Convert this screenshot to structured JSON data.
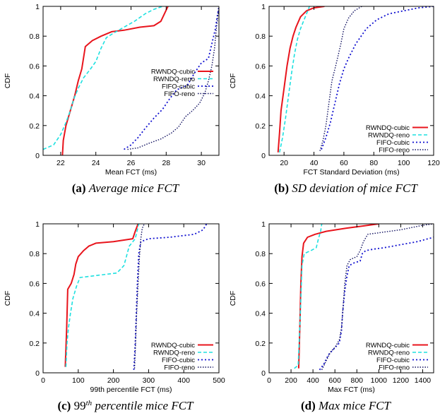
{
  "chart_data": [
    {
      "id": "a",
      "type": "line",
      "caption": {
        "tag": "(a)",
        "text": "Average mice FCT"
      },
      "xlabel": "Mean FCT (ms)",
      "ylabel": "CDF",
      "xlim": [
        21,
        31
      ],
      "ylim": [
        0,
        1
      ],
      "xticks": [
        22,
        24,
        26,
        28,
        30
      ],
      "yticks": [
        0,
        0.2,
        0.4,
        0.6,
        0.8,
        1
      ],
      "legend_position": "top-right",
      "series": [
        {
          "name": "RWNDQ-cubic",
          "color": "#e8141c",
          "dash": "",
          "width": 2,
          "points": [
            [
              22.1,
              0
            ],
            [
              22.15,
              0.1
            ],
            [
              22.3,
              0.2
            ],
            [
              22.55,
              0.3
            ],
            [
              22.8,
              0.4
            ],
            [
              23.0,
              0.5
            ],
            [
              23.2,
              0.58
            ],
            [
              23.4,
              0.73
            ],
            [
              23.8,
              0.77
            ],
            [
              24.3,
              0.8
            ],
            [
              24.9,
              0.83
            ],
            [
              25.6,
              0.84
            ],
            [
              26.5,
              0.86
            ],
            [
              27.3,
              0.87
            ],
            [
              27.7,
              0.9
            ],
            [
              27.9,
              0.95
            ],
            [
              28.1,
              1
            ]
          ]
        },
        {
          "name": "RWNDQ-reno",
          "color": "#1ee0e0",
          "dash": "5,3",
          "width": 1.6,
          "points": [
            [
              21,
              0.04
            ],
            [
              21.6,
              0.07
            ],
            [
              22.0,
              0.14
            ],
            [
              22.3,
              0.22
            ],
            [
              22.55,
              0.3
            ],
            [
              22.75,
              0.38
            ],
            [
              23.0,
              0.45
            ],
            [
              23.3,
              0.52
            ],
            [
              23.7,
              0.58
            ],
            [
              24.0,
              0.63
            ],
            [
              24.3,
              0.72
            ],
            [
              24.6,
              0.79
            ],
            [
              25.0,
              0.82
            ],
            [
              25.6,
              0.86
            ],
            [
              26.2,
              0.9
            ],
            [
              26.8,
              0.95
            ],
            [
              27.3,
              0.98
            ],
            [
              27.8,
              1
            ]
          ]
        },
        {
          "name": "FIFO-cubic",
          "color": "#1010d0",
          "dash": "2,3",
          "width": 1.8,
          "points": [
            [
              25.6,
              0.04
            ],
            [
              26.0,
              0.07
            ],
            [
              26.4,
              0.12
            ],
            [
              26.8,
              0.18
            ],
            [
              27.3,
              0.25
            ],
            [
              27.8,
              0.31
            ],
            [
              28.2,
              0.38
            ],
            [
              28.6,
              0.44
            ],
            [
              29.2,
              0.47
            ],
            [
              29.6,
              0.55
            ],
            [
              30.0,
              0.62
            ],
            [
              30.4,
              0.65
            ],
            [
              30.6,
              0.75
            ],
            [
              30.8,
              0.85
            ],
            [
              30.9,
              0.93
            ],
            [
              31.0,
              1
            ]
          ]
        },
        {
          "name": "FIFO-reno",
          "color": "#101060",
          "dash": "1.5,2",
          "width": 1.4,
          "points": [
            [
              25.8,
              0.04
            ],
            [
              26.4,
              0.05
            ],
            [
              27.0,
              0.08
            ],
            [
              27.7,
              0.11
            ],
            [
              28.3,
              0.15
            ],
            [
              28.7,
              0.19
            ],
            [
              29.1,
              0.26
            ],
            [
              29.5,
              0.3
            ],
            [
              29.9,
              0.35
            ],
            [
              30.2,
              0.42
            ],
            [
              30.4,
              0.5
            ],
            [
              30.6,
              0.6
            ],
            [
              30.75,
              0.72
            ],
            [
              30.85,
              0.85
            ],
            [
              30.95,
              0.95
            ],
            [
              31.0,
              1
            ]
          ]
        }
      ]
    },
    {
      "id": "b",
      "type": "line",
      "caption": {
        "tag": "(b)",
        "text": "SD deviation of mice FCT"
      },
      "xlabel": "FCT Standard Deviation (ms)",
      "ylabel": "CDF",
      "xlim": [
        10,
        120
      ],
      "ylim": [
        0,
        1
      ],
      "xticks": [
        20,
        40,
        60,
        80,
        100,
        120
      ],
      "yticks": [
        0,
        0.2,
        0.4,
        0.6,
        0.8,
        1
      ],
      "legend_position": "bottom-right",
      "series": [
        {
          "name": "RWNDQ-cubic",
          "color": "#e8141c",
          "dash": "",
          "width": 2,
          "points": [
            [
              16,
              0.02
            ],
            [
              17,
              0.15
            ],
            [
              18,
              0.3
            ],
            [
              20,
              0.45
            ],
            [
              22,
              0.6
            ],
            [
              24,
              0.72
            ],
            [
              26,
              0.8
            ],
            [
              28,
              0.86
            ],
            [
              31,
              0.93
            ],
            [
              35,
              0.97
            ],
            [
              40,
              0.99
            ],
            [
              47,
              1
            ]
          ]
        },
        {
          "name": "RWNDQ-reno",
          "color": "#1ee0e0",
          "dash": "5,3",
          "width": 1.6,
          "points": [
            [
              17,
              0.02
            ],
            [
              19,
              0.12
            ],
            [
              21,
              0.25
            ],
            [
              23,
              0.4
            ],
            [
              25,
              0.55
            ],
            [
              27,
              0.68
            ],
            [
              29,
              0.78
            ],
            [
              31,
              0.85
            ],
            [
              33,
              0.9
            ],
            [
              35,
              0.95
            ],
            [
              37,
              1
            ]
          ]
        },
        {
          "name": "FIFO-cubic",
          "color": "#1010d0",
          "dash": "2,3",
          "width": 1.8,
          "points": [
            [
              45,
              0.04
            ],
            [
              48,
              0.12
            ],
            [
              51,
              0.22
            ],
            [
              54,
              0.35
            ],
            [
              57,
              0.48
            ],
            [
              60,
              0.58
            ],
            [
              63,
              0.65
            ],
            [
              68,
              0.75
            ],
            [
              75,
              0.85
            ],
            [
              82,
              0.91
            ],
            [
              90,
              0.95
            ],
            [
              100,
              0.97
            ],
            [
              110,
              0.99
            ],
            [
              120,
              1
            ]
          ]
        },
        {
          "name": "FIFO-reno",
          "color": "#101060",
          "dash": "1.5,2",
          "width": 1.4,
          "points": [
            [
              44,
              0.03
            ],
            [
              46,
              0.1
            ],
            [
              48,
              0.2
            ],
            [
              50,
              0.35
            ],
            [
              52,
              0.5
            ],
            [
              55,
              0.62
            ],
            [
              58,
              0.75
            ],
            [
              60,
              0.85
            ],
            [
              63,
              0.92
            ],
            [
              67,
              0.97
            ],
            [
              72,
              1
            ]
          ]
        }
      ]
    },
    {
      "id": "c",
      "type": "line",
      "caption": {
        "tag": "(c)",
        "pre": "99",
        "sup": "th",
        "text": "percentile mice FCT"
      },
      "xlabel": "99th percentile FCT (ms)",
      "ylabel": "CDF",
      "xlim": [
        0,
        500
      ],
      "ylim": [
        0,
        1
      ],
      "xticks": [
        0,
        100,
        200,
        300,
        400,
        500
      ],
      "yticks": [
        0,
        0.2,
        0.4,
        0.6,
        0.8,
        1
      ],
      "legend_position": "bottom-right",
      "series": [
        {
          "name": "RWNDQ-cubic",
          "color": "#e8141c",
          "dash": "",
          "width": 2,
          "points": [
            [
              63,
              0.04
            ],
            [
              67,
              0.3
            ],
            [
              70,
              0.56
            ],
            [
              80,
              0.6
            ],
            [
              88,
              0.66
            ],
            [
              93,
              0.73
            ],
            [
              100,
              0.78
            ],
            [
              115,
              0.82
            ],
            [
              130,
              0.85
            ],
            [
              150,
              0.87
            ],
            [
              200,
              0.88
            ],
            [
              255,
              0.9
            ],
            [
              262,
              0.95
            ],
            [
              270,
              1
            ]
          ]
        },
        {
          "name": "RWNDQ-reno",
          "color": "#1ee0e0",
          "dash": "5,3",
          "width": 1.6,
          "points": [
            [
              65,
              0.04
            ],
            [
              68,
              0.2
            ],
            [
              72,
              0.3
            ],
            [
              78,
              0.4
            ],
            [
              85,
              0.5
            ],
            [
              95,
              0.58
            ],
            [
              105,
              0.64
            ],
            [
              140,
              0.65
            ],
            [
              210,
              0.67
            ],
            [
              230,
              0.72
            ],
            [
              245,
              0.85
            ],
            [
              262,
              0.9
            ],
            [
              272,
              1
            ]
          ]
        },
        {
          "name": "FIFO-cubic",
          "color": "#1010d0",
          "dash": "2,3",
          "width": 1.8,
          "points": [
            [
              258,
              0.02
            ],
            [
              262,
              0.2
            ],
            [
              265,
              0.4
            ],
            [
              268,
              0.6
            ],
            [
              272,
              0.8
            ],
            [
              278,
              0.88
            ],
            [
              300,
              0.9
            ],
            [
              360,
              0.91
            ],
            [
              430,
              0.93
            ],
            [
              455,
              0.96
            ],
            [
              465,
              1
            ]
          ]
        },
        {
          "name": "FIFO-reno",
          "color": "#101060",
          "dash": "1.5,2",
          "width": 1.4,
          "points": [
            [
              260,
              0.03
            ],
            [
              263,
              0.2
            ],
            [
              266,
              0.4
            ],
            [
              270,
              0.6
            ],
            [
              274,
              0.78
            ],
            [
              278,
              0.9
            ],
            [
              282,
              0.97
            ],
            [
              288,
              1
            ]
          ]
        }
      ]
    },
    {
      "id": "d",
      "type": "line",
      "caption": {
        "tag": "(d)",
        "text": "Max mice FCT"
      },
      "xlabel": "Max FCT (ms)",
      "ylabel": "CDF",
      "xlim": [
        0,
        1500
      ],
      "ylim": [
        0,
        1
      ],
      "xticks": [
        0,
        200,
        400,
        600,
        800,
        1000,
        1200,
        1400
      ],
      "yticks": [
        0,
        0.2,
        0.4,
        0.6,
        0.8,
        1
      ],
      "legend_position": "bottom-right",
      "series": [
        {
          "name": "RWNDQ-cubic",
          "color": "#e8141c",
          "dash": "",
          "width": 2,
          "points": [
            [
              270,
              0.03
            ],
            [
              280,
              0.3
            ],
            [
              290,
              0.6
            ],
            [
              300,
              0.78
            ],
            [
              315,
              0.87
            ],
            [
              350,
              0.91
            ],
            [
              420,
              0.93
            ],
            [
              520,
              0.95
            ],
            [
              700,
              0.97
            ],
            [
              1000,
              1
            ]
          ]
        },
        {
          "name": "RWNDQ-reno",
          "color": "#1ee0e0",
          "dash": "5,3",
          "width": 1.6,
          "points": [
            [
              230,
              0.03
            ],
            [
              265,
              0.05
            ],
            [
              285,
              0.4
            ],
            [
              300,
              0.72
            ],
            [
              320,
              0.8
            ],
            [
              380,
              0.82
            ],
            [
              430,
              0.84
            ],
            [
              450,
              0.9
            ],
            [
              470,
              0.95
            ],
            [
              480,
              1
            ]
          ]
        },
        {
          "name": "FIFO-cubic",
          "color": "#1010d0",
          "dash": "2,3",
          "width": 1.8,
          "points": [
            [
              460,
              0.02
            ],
            [
              500,
              0.06
            ],
            [
              540,
              0.12
            ],
            [
              590,
              0.16
            ],
            [
              640,
              0.2
            ],
            [
              660,
              0.28
            ],
            [
              670,
              0.4
            ],
            [
              690,
              0.55
            ],
            [
              710,
              0.65
            ],
            [
              730,
              0.72
            ],
            [
              780,
              0.74
            ],
            [
              830,
              0.75
            ],
            [
              850,
              0.8
            ],
            [
              880,
              0.82
            ],
            [
              950,
              0.83
            ],
            [
              1050,
              0.84
            ],
            [
              1200,
              0.86
            ],
            [
              1350,
              0.88
            ],
            [
              1500,
              0.91
            ]
          ]
        },
        {
          "name": "FIFO-reno",
          "color": "#101060",
          "dash": "1.5,2",
          "width": 1.4,
          "points": [
            [
              480,
              0.02
            ],
            [
              520,
              0.08
            ],
            [
              560,
              0.14
            ],
            [
              600,
              0.17
            ],
            [
              640,
              0.22
            ],
            [
              660,
              0.3
            ],
            [
              675,
              0.45
            ],
            [
              690,
              0.6
            ],
            [
              710,
              0.72
            ],
            [
              740,
              0.76
            ],
            [
              800,
              0.78
            ],
            [
              830,
              0.82
            ],
            [
              860,
              0.88
            ],
            [
              900,
              0.93
            ],
            [
              1000,
              0.94
            ],
            [
              1200,
              0.96
            ],
            [
              1400,
              0.99
            ],
            [
              1500,
              1
            ]
          ]
        }
      ]
    }
  ]
}
